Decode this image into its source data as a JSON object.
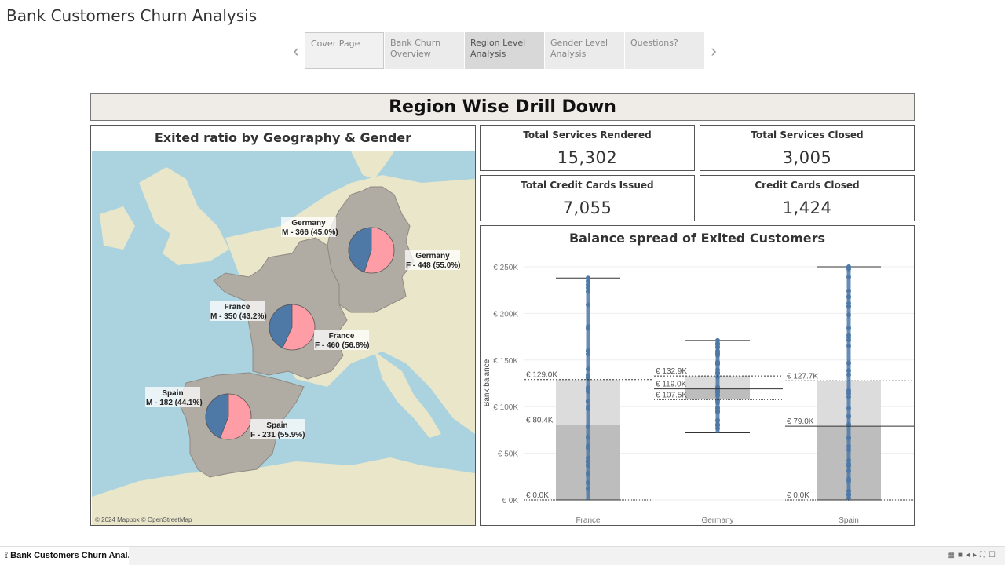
{
  "app": {
    "title": "Bank Customers Churn Analysis"
  },
  "nav": {
    "prev_icon": "chevron-left-icon",
    "next_icon": "chevron-right-icon",
    "tabs": [
      {
        "line1": "Cover Page",
        "line2": ""
      },
      {
        "line1": "Bank Churn",
        "line2": "Overview"
      },
      {
        "line1": "Region Level",
        "line2": "Analysis"
      },
      {
        "line1": "Gender Level",
        "line2": "Analysis"
      },
      {
        "line1": "Questions?",
        "line2": ""
      }
    ],
    "active_index": 2
  },
  "banner": {
    "title": "Region Wise Drill Down"
  },
  "map_panel": {
    "title": "Exited ratio by Geography & Gender",
    "attribution": "© 2024 Mapbox © OpenStreetMap",
    "colors": {
      "male": "#4e79a7",
      "female": "#ff9da7",
      "land": "#b0aba3",
      "sea": "#aad3df"
    },
    "countries": [
      {
        "name": "Germany",
        "male_label": "M - 366 (45.0%)",
        "female_label": "F - 448 (55.0%)",
        "male_count": 366,
        "female_count": 448,
        "male_pct": 45.0
      },
      {
        "name": "France",
        "male_label": "M - 350 (43.2%)",
        "female_label": "F - 460 (56.8%)",
        "male_count": 350,
        "female_count": 460,
        "male_pct": 43.2
      },
      {
        "name": "Spain",
        "male_label": "M - 182 (44.1%)",
        "female_label": "F - 231 (55.9%)",
        "male_count": 182,
        "female_count": 231,
        "male_pct": 44.1
      }
    ]
  },
  "kpis": {
    "services_rendered": {
      "label": "Total Services Rendered",
      "value": "15,302"
    },
    "services_closed": {
      "label": "Total Services Closed",
      "value": "3,005"
    },
    "cards_issued": {
      "label": "Total Credit Cards Issued",
      "value": "7,055"
    },
    "cards_closed": {
      "label": "Credit Cards Closed",
      "value": "1,424"
    }
  },
  "box_panel": {
    "title": "Balance spread of Exited Customers"
  },
  "chart_data": {
    "type": "box",
    "title": "Balance spread of Exited Customers",
    "ylabel": "Bank balance",
    "ylim": [
      0,
      260000
    ],
    "yticks": [
      0,
      50000,
      100000,
      150000,
      200000,
      250000
    ],
    "ytick_labels": [
      "€ 0K",
      "€ 50K",
      "€ 100K",
      "€ 150K",
      "€ 200K",
      "€ 250K"
    ],
    "categories": [
      "France",
      "Germany",
      "Spain"
    ],
    "point_color": "#4e79a7",
    "boxes": [
      {
        "category": "France",
        "min": 0,
        "q1": 0,
        "median": 80400,
        "q3": 129000,
        "max": 238000,
        "labels": {
          "q3": "€ 129.0K",
          "median": "€ 80.4K",
          "q1": "€ 0.0K"
        }
      },
      {
        "category": "Germany",
        "min": 72000,
        "q1": 107500,
        "median": 119000,
        "q3": 132900,
        "max": 171000,
        "labels": {
          "q3": "€ 132.9K",
          "median": "€ 119.0K",
          "q1": "€ 107.5K"
        }
      },
      {
        "category": "Spain",
        "min": 0,
        "q1": 0,
        "median": 79000,
        "q3": 127700,
        "max": 250000,
        "labels": {
          "q3": "€ 127.7K",
          "median": "€ 79.0K",
          "q1": "€ 0.0K"
        }
      }
    ]
  },
  "statusbar": {
    "tab_label": "Bank Customers Churn Anal...",
    "tab_icon": "workbook-icon"
  }
}
